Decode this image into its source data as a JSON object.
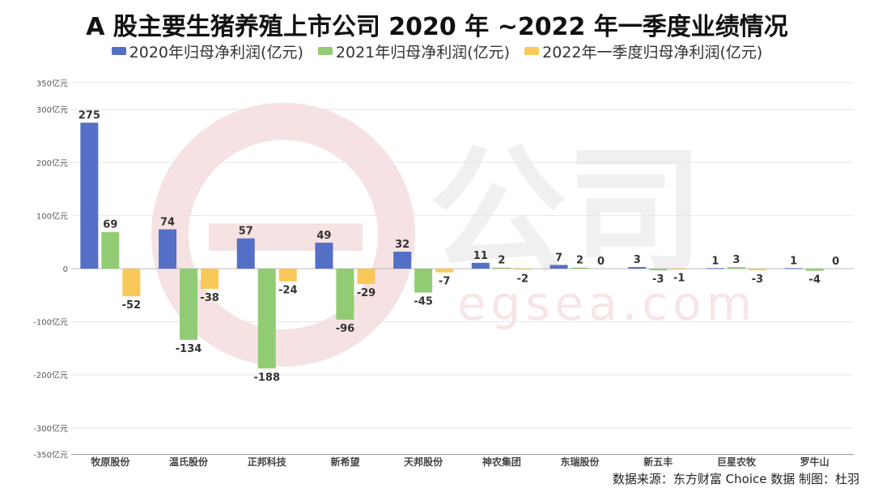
{
  "title": "A 股主要生猪养殖上市公司 2020 年 ~2022 年一季度业绩情况",
  "source": "数据来源：东方财富 Choice 数据 制图：杜羽",
  "watermark": {
    "text_large": "公司",
    "text_small": "egsea.com"
  },
  "colors": {
    "s2020": "#5470c6",
    "s2021": "#91cc75",
    "s2022": "#fac858",
    "grid": "#e6e6e6",
    "axis": "#555555",
    "watermark": "#f2dede"
  },
  "chart_data": {
    "type": "bar",
    "title": "A 股主要生猪养殖上市公司 2020 年 ~2022 年一季度业绩情况",
    "xlabel": "",
    "ylabel": "",
    "categories": [
      "牧原股份",
      "温氏股份",
      "正邦科技",
      "新希望",
      "天邦股份",
      "神农集团",
      "东瑞股份",
      "新五丰",
      "巨星农牧",
      "罗牛山"
    ],
    "series": [
      {
        "name": "2020年归母净利润(亿元)",
        "values": [
          275,
          74,
          57,
          49,
          32,
          11,
          7,
          3,
          1,
          1
        ]
      },
      {
        "name": "2021年归母净利润(亿元)",
        "values": [
          69,
          -134,
          -188,
          -96,
          -45,
          2,
          2,
          -3,
          3,
          -4
        ]
      },
      {
        "name": "2022年一季度归母净利润(亿元)",
        "values": [
          -52,
          -38,
          -24,
          -29,
          -7,
          -2,
          0,
          -1,
          -3,
          0
        ]
      }
    ],
    "yticks": [
      {
        "value": 350,
        "label": "350亿元"
      },
      {
        "value": 300,
        "label": "300亿元"
      },
      {
        "value": 200,
        "label": "200亿元"
      },
      {
        "value": 100,
        "label": "100亿元"
      },
      {
        "value": 0,
        "label": "0"
      },
      {
        "value": -100,
        "label": "-100亿元"
      },
      {
        "value": -200,
        "label": "-200亿元"
      },
      {
        "value": -300,
        "label": "-300亿元"
      },
      {
        "value": -350,
        "label": "-350亿元"
      }
    ],
    "ylim": [
      -350,
      350
    ],
    "grid": true,
    "legend_position": "top"
  }
}
